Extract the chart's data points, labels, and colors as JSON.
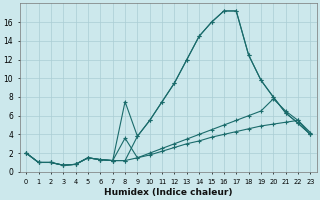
{
  "xlabel": "Humidex (Indice chaleur)",
  "background_color": "#cce8ec",
  "grid_color": "#aacdd4",
  "line_color": "#1a6b6b",
  "xlim_min": -0.5,
  "xlim_max": 23.5,
  "ylim_min": 0,
  "ylim_max": 18,
  "yticks": [
    0,
    2,
    4,
    6,
    8,
    10,
    12,
    14,
    16
  ],
  "series1_x": [
    0,
    1,
    2,
    3,
    4,
    5,
    6,
    7,
    8,
    9,
    10,
    11,
    12,
    13,
    14,
    15,
    16,
    17,
    18,
    19,
    20,
    21,
    22,
    23
  ],
  "series1_y": [
    2,
    1,
    1,
    0.7,
    0.8,
    1.5,
    1.3,
    1.2,
    1.2,
    3.8,
    5.5,
    7.5,
    9.5,
    12.0,
    14.5,
    16.0,
    17.2,
    17.2,
    12.5,
    9.8,
    8.0,
    6.3,
    5.2,
    4.0
  ],
  "series2_x": [
    0,
    1,
    2,
    3,
    4,
    5,
    6,
    7,
    8,
    9,
    10,
    11,
    12,
    13,
    14,
    15,
    16,
    17,
    18,
    19,
    20,
    21,
    22,
    23
  ],
  "series2_y": [
    2,
    1,
    1,
    0.7,
    0.8,
    1.5,
    1.3,
    1.2,
    7.5,
    3.8,
    5.5,
    7.5,
    9.5,
    12.0,
    14.5,
    16.0,
    17.2,
    17.2,
    12.5,
    9.8,
    8.0,
    6.3,
    5.2,
    4.0
  ],
  "series3_x": [
    0,
    1,
    2,
    3,
    4,
    5,
    6,
    7,
    8,
    9,
    10,
    11,
    12,
    13,
    14,
    15,
    16,
    17,
    18,
    19,
    20,
    21,
    22,
    23
  ],
  "series3_y": [
    2,
    1,
    1,
    0.7,
    0.8,
    1.5,
    1.3,
    1.2,
    3.6,
    1.5,
    2.0,
    2.5,
    3.0,
    3.5,
    4.0,
    4.5,
    5.0,
    5.5,
    6.0,
    6.5,
    7.8,
    6.5,
    5.5,
    4.2
  ],
  "series4_x": [
    0,
    1,
    2,
    3,
    4,
    5,
    6,
    7,
    8,
    9,
    10,
    11,
    12,
    13,
    14,
    15,
    16,
    17,
    18,
    19,
    20,
    21,
    22,
    23
  ],
  "series4_y": [
    2,
    1,
    1,
    0.7,
    0.8,
    1.5,
    1.3,
    1.2,
    1.2,
    1.5,
    1.8,
    2.2,
    2.6,
    3.0,
    3.3,
    3.7,
    4.0,
    4.3,
    4.6,
    4.9,
    5.1,
    5.3,
    5.5,
    4.0
  ]
}
